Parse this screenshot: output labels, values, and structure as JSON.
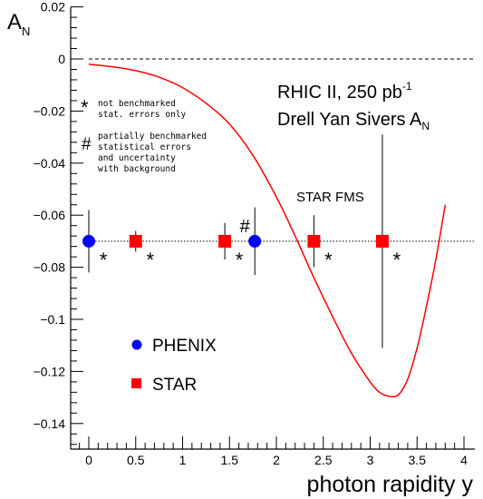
{
  "chart_data": {
    "type": "scatter",
    "title": "",
    "xlabel": "photon rapidity y",
    "ylabel": "A",
    "ylabel_sub": "N",
    "xlim": [
      -0.2,
      4.1
    ],
    "ylim": [
      -0.149,
      0.02
    ],
    "x_ticks": [
      0,
      0.5,
      1,
      1.5,
      2,
      2.5,
      3,
      3.5,
      4
    ],
    "x_tick_labels": [
      "0",
      "0.5",
      "1",
      "1.5",
      "2",
      "2.5",
      "3",
      "3.5",
      "4"
    ],
    "y_ticks": [
      0.02,
      0,
      -0.02,
      -0.04,
      -0.06,
      -0.08,
      -0.1,
      -0.12,
      -0.14
    ],
    "y_tick_labels": [
      "0.02",
      "0",
      "−0.02",
      "−0.04",
      "−0.06",
      "−0.08",
      "−0.1",
      "−0.12",
      "−0.14"
    ],
    "grid": false,
    "zero_line": {
      "y": 0,
      "style": "dashed"
    },
    "reference_line": {
      "y": -0.07,
      "style": "dotted"
    },
    "theory_curve": {
      "name": "Drell Yan Sivers A",
      "color": "#ff0000",
      "x": [
        0,
        0.25,
        0.5,
        0.75,
        1.0,
        1.25,
        1.5,
        1.75,
        2.0,
        2.2,
        2.4,
        2.6,
        2.8,
        3.0,
        3.1,
        3.2,
        3.3,
        3.4,
        3.5,
        3.6,
        3.7,
        3.8
      ],
      "y": [
        -0.002,
        -0.003,
        -0.0045,
        -0.007,
        -0.011,
        -0.017,
        -0.025,
        -0.037,
        -0.053,
        -0.068,
        -0.084,
        -0.099,
        -0.113,
        -0.124,
        -0.128,
        -0.1295,
        -0.129,
        -0.123,
        -0.111,
        -0.095,
        -0.077,
        -0.056
      ]
    },
    "series": [
      {
        "name": "PHENIX",
        "color": "#0000ff",
        "marker": "circle",
        "x": [
          0,
          1.77
        ],
        "y": [
          -0.07,
          -0.07
        ],
        "err_low": [
          -0.082,
          -0.083
        ],
        "err_high": [
          -0.058,
          -0.057
        ],
        "flags": [
          "*",
          "#"
        ]
      },
      {
        "name": "STAR",
        "color": "#ff0000",
        "marker": "square",
        "x": [
          0.5,
          1.45,
          2.4,
          3.13
        ],
        "y": [
          -0.07,
          -0.07,
          -0.07,
          -0.07
        ],
        "err_low": [
          -0.074,
          -0.077,
          -0.08,
          -0.111
        ],
        "err_high": [
          -0.066,
          -0.063,
          -0.06,
          -0.029
        ],
        "flags": [
          "*",
          "*",
          "*",
          "*"
        ]
      }
    ],
    "annotations": {
      "box_title_line1": "RHIC II, 250 pb",
      "box_title_line1_sup": "-1",
      "box_title_line2": "Drell Yan Sivers A",
      "box_title_line2_sub": "N",
      "fms_label": "STAR FMS",
      "note_star_symbol": "*",
      "note_star_line1": "not benchmarked",
      "note_star_line2": "stat. errors only",
      "note_hash_symbol": "#",
      "note_hash_line1": "partially benchmarked",
      "note_hash_line2": "statistical errors",
      "note_hash_line3": "and uncertainty",
      "note_hash_line4": "with background"
    },
    "legend": {
      "placement": "bottom-left",
      "entries": [
        "PHENIX",
        "STAR"
      ]
    }
  }
}
